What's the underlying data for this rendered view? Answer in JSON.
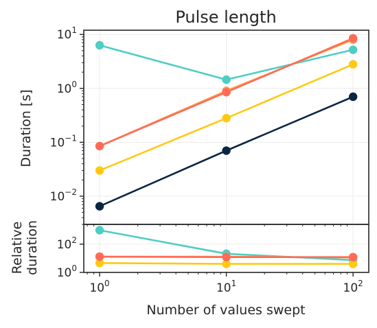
{
  "chart_data": [
    {
      "type": "line",
      "panel": "main",
      "title": "Pulse length",
      "xlabel": "",
      "ylabel": "Duration [s]",
      "xscale": "log",
      "yscale": "log",
      "xlim": [
        0.75,
        133
      ],
      "ylim": [
        0.003,
        12
      ],
      "x": [
        1,
        10,
        100
      ],
      "x_ticks": [
        {
          "base": "10",
          "exp": "0"
        },
        {
          "base": "10",
          "exp": "1"
        },
        {
          "base": "10",
          "exp": "2"
        }
      ],
      "y_ticks": [
        {
          "value": 0.01,
          "base": "10",
          "exp": "−2"
        },
        {
          "value": 0.1,
          "base": "10",
          "exp": "−1"
        },
        {
          "value": 1,
          "base": "10",
          "exp": "0"
        },
        {
          "value": 10,
          "base": "10",
          "exp": "1"
        }
      ],
      "grid": true,
      "legend": "none",
      "series": [
        {
          "color": "#4ecdc4",
          "values": [
            6.3,
            1.45,
            5.2
          ]
        },
        {
          "color": "#ffc914",
          "values": [
            0.03,
            0.28,
            2.8
          ]
        },
        {
          "color": "#f9a04a",
          "values": [
            0.085,
            0.9,
            8.0
          ]
        },
        {
          "color": "#ff6b57",
          "values": [
            0.085,
            0.85,
            8.5
          ]
        },
        {
          "color": "#0b2545",
          "values": [
            0.0065,
            0.07,
            0.7
          ]
        }
      ]
    },
    {
      "type": "line",
      "panel": "relative",
      "title": "",
      "xlabel": "Number of values swept",
      "ylabel_lines": [
        "Relative",
        "duration"
      ],
      "xscale": "log",
      "yscale": "log",
      "xlim": [
        0.75,
        133
      ],
      "ylim": [
        1,
        2500
      ],
      "x": [
        1,
        10,
        100
      ],
      "x_ticks": [
        {
          "value": 1,
          "base": "10",
          "exp": "0"
        },
        {
          "value": 10,
          "base": "10",
          "exp": "1"
        },
        {
          "value": 100,
          "base": "10",
          "exp": "2"
        }
      ],
      "y_ticks": [
        {
          "value": 1,
          "base": "10",
          "exp": "0"
        },
        {
          "value": 100,
          "base": "10",
          "exp": "2"
        }
      ],
      "grid": true,
      "legend": "none",
      "series": [
        {
          "color": "#4ecdc4",
          "values": [
            970,
            21,
            7.4
          ]
        },
        {
          "color": "#ffc914",
          "values": [
            4.6,
            4.0,
            4.0
          ]
        },
        {
          "color": "#f9a04a",
          "values": [
            13,
            12.9,
            11.4
          ]
        },
        {
          "color": "#ff6b57",
          "values": [
            13,
            12.1,
            12.1
          ]
        }
      ]
    }
  ]
}
